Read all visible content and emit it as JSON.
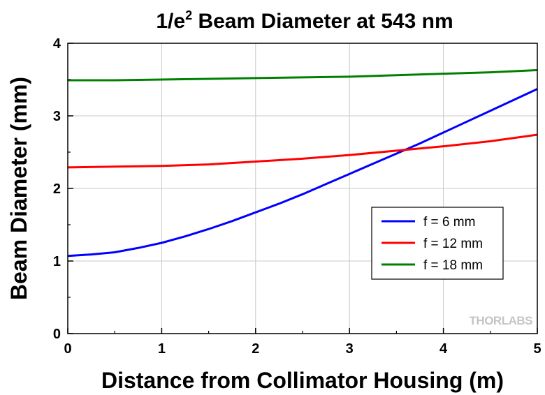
{
  "chart_data": {
    "type": "line",
    "title": {
      "prefix": "1/e",
      "superscript": "2",
      "suffix": " Beam Diameter at 543 nm"
    },
    "xlabel": "Distance from Collimator Housing (m)",
    "ylabel": "Beam Diameter (mm)",
    "xlim": [
      0,
      5
    ],
    "ylim": [
      0,
      4
    ],
    "x_ticks": [
      "0",
      "1",
      "2",
      "3",
      "4",
      "5"
    ],
    "y_ticks": [
      "0",
      "1",
      "2",
      "3",
      "4"
    ],
    "grid": true,
    "legend_position": "center-right",
    "series": [
      {
        "name": "f = 6 mm",
        "color": "#0000ff",
        "x": [
          0,
          0.25,
          0.5,
          0.75,
          1.0,
          1.25,
          1.5,
          1.75,
          2.0,
          2.25,
          2.5,
          2.75,
          3.0,
          3.25,
          3.5,
          3.75,
          4.0,
          4.25,
          4.5,
          4.75,
          5.0
        ],
        "y": [
          1.07,
          1.09,
          1.12,
          1.18,
          1.25,
          1.34,
          1.44,
          1.55,
          1.67,
          1.79,
          1.92,
          2.06,
          2.2,
          2.34,
          2.48,
          2.62,
          2.77,
          2.92,
          3.07,
          3.22,
          3.37
        ]
      },
      {
        "name": "f = 12 mm",
        "color": "#ff0000",
        "x": [
          0,
          0.5,
          1.0,
          1.5,
          2.0,
          2.5,
          3.0,
          3.5,
          4.0,
          4.5,
          5.0
        ],
        "y": [
          2.29,
          2.3,
          2.31,
          2.33,
          2.37,
          2.41,
          2.46,
          2.52,
          2.58,
          2.65,
          2.74
        ]
      },
      {
        "name": "f = 18 mm",
        "color": "#008000",
        "x": [
          0,
          0.5,
          1.0,
          1.5,
          2.0,
          2.5,
          3.0,
          3.5,
          4.0,
          4.5,
          5.0
        ],
        "y": [
          3.49,
          3.49,
          3.5,
          3.51,
          3.52,
          3.53,
          3.54,
          3.56,
          3.58,
          3.6,
          3.63
        ]
      }
    ],
    "watermark": "THORLABS"
  }
}
